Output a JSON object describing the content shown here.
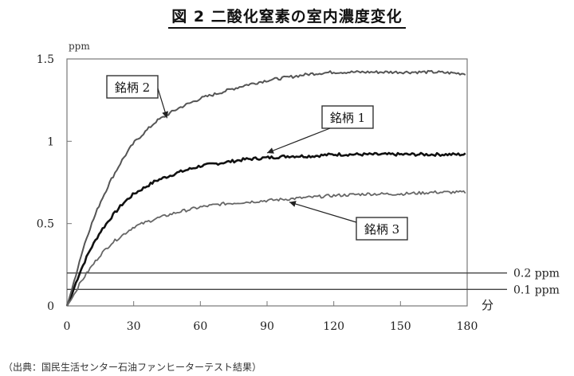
{
  "title": "図 2 二酸化窒素の室内濃度変化",
  "source_note": "（出典：国民生活センター石油ファンヒーターテスト結果）",
  "chart_data": {
    "type": "line",
    "title": "図 2 二酸化窒素の室内濃度変化",
    "xlabel": "分",
    "ylabel": "ppm",
    "xlim": [
      0,
      180
    ],
    "ylim": [
      0,
      1.5
    ],
    "x_ticks": [
      "0",
      "30",
      "60",
      "90",
      "120",
      "150",
      "180"
    ],
    "y_ticks": [
      "0",
      "0.5",
      "1",
      "1.5"
    ],
    "x_tick_values": [
      0,
      30,
      60,
      90,
      120,
      150,
      180
    ],
    "y_tick_values": [
      0,
      0.5,
      1,
      1.5
    ],
    "grid": false,
    "x": [
      0,
      2,
      4,
      6,
      8,
      10,
      15,
      20,
      25,
      30,
      40,
      50,
      60,
      70,
      80,
      90,
      100,
      110,
      120,
      135,
      150,
      165,
      180
    ],
    "series": [
      {
        "name": "銘柄 1",
        "color": "#111111",
        "values": [
          0.0,
          0.06,
          0.14,
          0.21,
          0.27,
          0.33,
          0.45,
          0.54,
          0.62,
          0.68,
          0.76,
          0.81,
          0.85,
          0.87,
          0.89,
          0.9,
          0.91,
          0.91,
          0.92,
          0.92,
          0.92,
          0.92,
          0.92
        ]
      },
      {
        "name": "銘柄 2",
        "color": "#555555",
        "values": [
          0.0,
          0.09,
          0.19,
          0.29,
          0.38,
          0.46,
          0.63,
          0.77,
          0.89,
          0.99,
          1.12,
          1.2,
          1.26,
          1.3,
          1.34,
          1.37,
          1.39,
          1.41,
          1.42,
          1.42,
          1.42,
          1.42,
          1.41
        ]
      },
      {
        "name": "銘柄 3",
        "color": "#666666",
        "values": [
          0.0,
          0.04,
          0.09,
          0.14,
          0.18,
          0.22,
          0.31,
          0.38,
          0.43,
          0.48,
          0.53,
          0.57,
          0.6,
          0.62,
          0.63,
          0.64,
          0.65,
          0.66,
          0.67,
          0.68,
          0.68,
          0.69,
          0.69
        ]
      }
    ],
    "reference_lines": [
      {
        "value": 0.2,
        "label": "0.2 ppm"
      },
      {
        "value": 0.1,
        "label": "0.1 ppm"
      }
    ],
    "annotations": [
      {
        "label": "銘柄 2",
        "series": 1,
        "x": 45
      },
      {
        "label": "銘柄 1",
        "series": 0,
        "x": 90
      },
      {
        "label": "銘柄 3",
        "series": 2,
        "x": 100
      }
    ]
  }
}
